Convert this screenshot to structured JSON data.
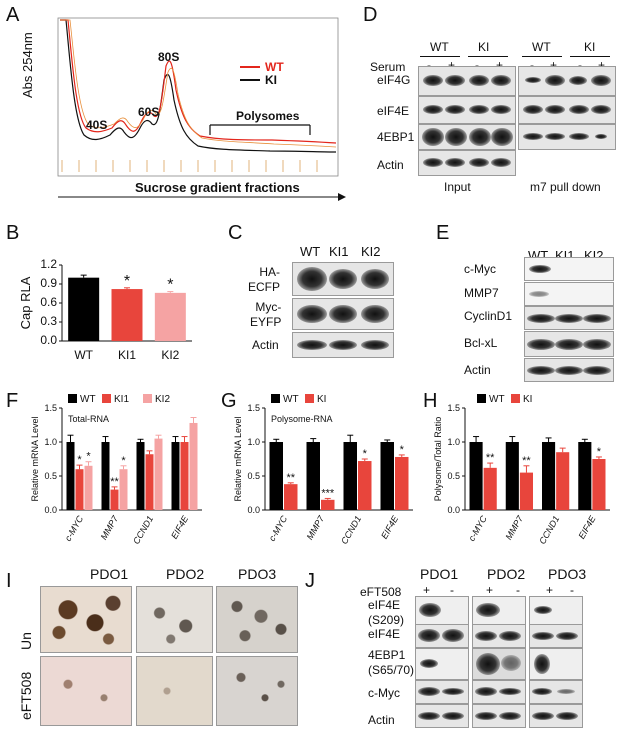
{
  "panels": {
    "A": "A",
    "B": "B",
    "C": "C",
    "D": "D",
    "E": "E",
    "F": "F",
    "G": "G",
    "H": "H",
    "I": "I",
    "J": "J"
  },
  "A": {
    "ylabel": "Abs 254nm",
    "xlabel": "Sucrose gradient fractions",
    "peaks": [
      "40S",
      "60S",
      "80S"
    ],
    "polysomes": "Polysomes",
    "legend": [
      {
        "name": "WT",
        "color": "#e3261c"
      },
      {
        "name": "KI",
        "color": "#111111"
      }
    ]
  },
  "B": {
    "ylabel": "Cap RLA"
  },
  "C": {
    "lanes": [
      "WT",
      "KI1",
      "KI2"
    ],
    "rows": [
      "HA-\nECFP",
      "Myc-\nEYFP",
      "Actin"
    ]
  },
  "D": {
    "groups": [
      "WT",
      "KI",
      "WT",
      "KI"
    ],
    "serum": "Serum",
    "signs": [
      "-",
      "+",
      "-",
      "+",
      "-",
      "+",
      "-",
      "+"
    ],
    "rows": [
      "eIF4G",
      "eIF4E",
      "4EBP1",
      "Actin"
    ],
    "footer": [
      "Input",
      "m7 pull down"
    ]
  },
  "E": {
    "lanes": [
      "WT",
      "KI1",
      "KI2"
    ],
    "rows": [
      "c-Myc",
      "MMP7",
      "CyclinD1",
      "Bcl-xL",
      "Actin"
    ]
  },
  "I": {
    "cols": [
      "PDO1",
      "PDO2",
      "PDO3"
    ],
    "rows": [
      "Un",
      "eFT508"
    ]
  },
  "J": {
    "cols": [
      "PDO1",
      "PDO2",
      "PDO3"
    ],
    "treatment": "eFT508",
    "signs": [
      "+",
      "-",
      "+",
      "-",
      "+",
      "-"
    ],
    "rows": [
      "eIF4E\n(S209)",
      "eIF4E",
      "4EBP1\n(S65/70)",
      "c-Myc",
      "Actin"
    ]
  },
  "chart_data": [
    {
      "panel": "B",
      "type": "bar",
      "categories": [
        "WT",
        "KI1",
        "KI2"
      ],
      "values": [
        1.0,
        0.82,
        0.76
      ],
      "errors": [
        0.04,
        0.02,
        0.02
      ],
      "significance": [
        "",
        "*",
        "*"
      ],
      "colors": [
        "#000000",
        "#e8453c",
        "#f5a3a3"
      ],
      "ylabel": "Cap RLA",
      "yticks": [
        "0.0",
        "0.3",
        "0.6",
        "0.9",
        "1.2"
      ],
      "ylim": [
        0,
        1.2
      ]
    },
    {
      "panel": "F",
      "type": "bar",
      "title": "Total-RNA",
      "ylabel": "Relative mRNA Level",
      "categories": [
        "c-MYC",
        "MMP7",
        "CCND1",
        "EIF4E"
      ],
      "series": [
        {
          "name": "WT",
          "color": "#000000",
          "values": [
            1.0,
            1.0,
            1.0,
            1.0
          ],
          "errors": [
            0.1,
            0.08,
            0.04,
            0.08
          ],
          "significance": [
            "",
            "",
            "",
            ""
          ]
        },
        {
          "name": "KI1",
          "color": "#e8453c",
          "values": [
            0.6,
            0.3,
            0.82,
            1.0
          ],
          "errors": [
            0.06,
            0.04,
            0.05,
            0.08
          ],
          "significance": [
            "*",
            "**",
            "",
            ""
          ]
        },
        {
          "name": "KI2",
          "color": "#f5a3a3",
          "values": [
            0.65,
            0.6,
            1.05,
            1.28
          ],
          "errors": [
            0.06,
            0.05,
            0.05,
            0.08
          ],
          "significance": [
            "*",
            "*",
            "",
            ""
          ]
        }
      ],
      "yticks": [
        "0.0",
        "0.5",
        "1.0",
        "1.5"
      ],
      "ylim": [
        0,
        1.5
      ]
    },
    {
      "panel": "G",
      "type": "bar",
      "title": "Polysome-RNA",
      "ylabel": "Relative mRNA Level",
      "categories": [
        "c-MYC",
        "MMP7",
        "CCND1",
        "EIF4E"
      ],
      "series": [
        {
          "name": "WT",
          "color": "#000000",
          "values": [
            1.0,
            1.0,
            1.0,
            1.0
          ],
          "errors": [
            0.04,
            0.05,
            0.1,
            0.03
          ],
          "significance": [
            "",
            "",
            "",
            ""
          ]
        },
        {
          "name": "KI",
          "color": "#e8453c",
          "values": [
            0.38,
            0.15,
            0.72,
            0.78
          ],
          "errors": [
            0.02,
            0.02,
            0.03,
            0.03
          ],
          "significance": [
            "**",
            "***",
            "*",
            "*"
          ]
        }
      ],
      "yticks": [
        "0.0",
        "0.5",
        "1.0",
        "1.5"
      ],
      "ylim": [
        0,
        1.5
      ]
    },
    {
      "panel": "H",
      "type": "bar",
      "ylabel": "Polysome/Total Ratio",
      "categories": [
        "c-MYC",
        "MMP7",
        "CCND1",
        "EIF4E"
      ],
      "series": [
        {
          "name": "WT",
          "color": "#000000",
          "values": [
            1.0,
            1.0,
            1.0,
            1.0
          ],
          "errors": [
            0.08,
            0.08,
            0.06,
            0.04
          ],
          "significance": [
            "",
            "",
            "",
            ""
          ]
        },
        {
          "name": "KI",
          "color": "#e8453c",
          "values": [
            0.62,
            0.55,
            0.85,
            0.75
          ],
          "errors": [
            0.07,
            0.1,
            0.06,
            0.03
          ],
          "significance": [
            "**",
            "**",
            "",
            "*"
          ]
        }
      ],
      "yticks": [
        "0.0",
        "0.5",
        "1.0",
        "1.5"
      ],
      "ylim": [
        0,
        1.5
      ]
    }
  ]
}
